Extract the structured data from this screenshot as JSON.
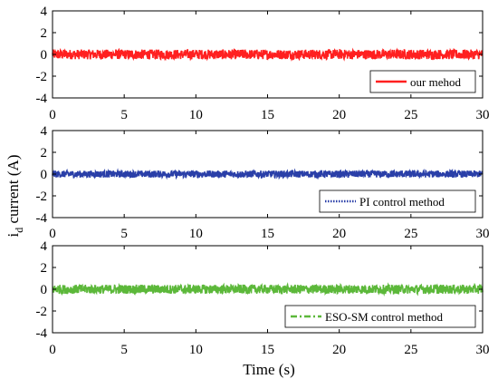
{
  "chart_data": {
    "type": "line",
    "shared_xlabel": "Time (s)",
    "shared_ylabel": "i",
    "shared_ylabel_sub": "d",
    "shared_ylabel_rest": " current (A)",
    "panels": [
      {
        "xlim": [
          0,
          30
        ],
        "ylim": [
          -4,
          4
        ],
        "x_ticks": [
          "0",
          "5",
          "10",
          "15",
          "20",
          "25",
          "30"
        ],
        "y_ticks": [
          "4",
          "2",
          "0",
          "-2",
          "-4"
        ],
        "series": [
          {
            "name": "our mehod",
            "color": "#ff2020",
            "line_style": "solid",
            "mean": 0,
            "noise_amplitude": 0.45
          }
        ],
        "legend_position": "bottom-right",
        "grid": false
      },
      {
        "xlim": [
          0,
          30
        ],
        "ylim": [
          -4,
          4
        ],
        "x_ticks": [
          "0",
          "5",
          "10",
          "15",
          "20",
          "25",
          "30"
        ],
        "y_ticks": [
          "4",
          "2",
          "0",
          "-2",
          "-4"
        ],
        "series": [
          {
            "name": "PI control method",
            "color": "#2a3fa8",
            "line_style": "dotted",
            "mean": 0,
            "noise_amplitude": 0.32
          }
        ],
        "legend_position": "bottom-right",
        "grid": false
      },
      {
        "xlim": [
          0,
          30
        ],
        "ylim": [
          -4,
          4
        ],
        "x_ticks": [
          "0",
          "5",
          "10",
          "15",
          "20",
          "25",
          "30"
        ],
        "y_ticks": [
          "4",
          "2",
          "0",
          "-2",
          "-4"
        ],
        "series": [
          {
            "name": "ESO-SM control method",
            "color": "#5cb83a",
            "line_style": "dashdot",
            "mean": 0,
            "noise_amplitude": 0.42
          }
        ],
        "legend_position": "bottom-right",
        "grid": false
      }
    ]
  }
}
